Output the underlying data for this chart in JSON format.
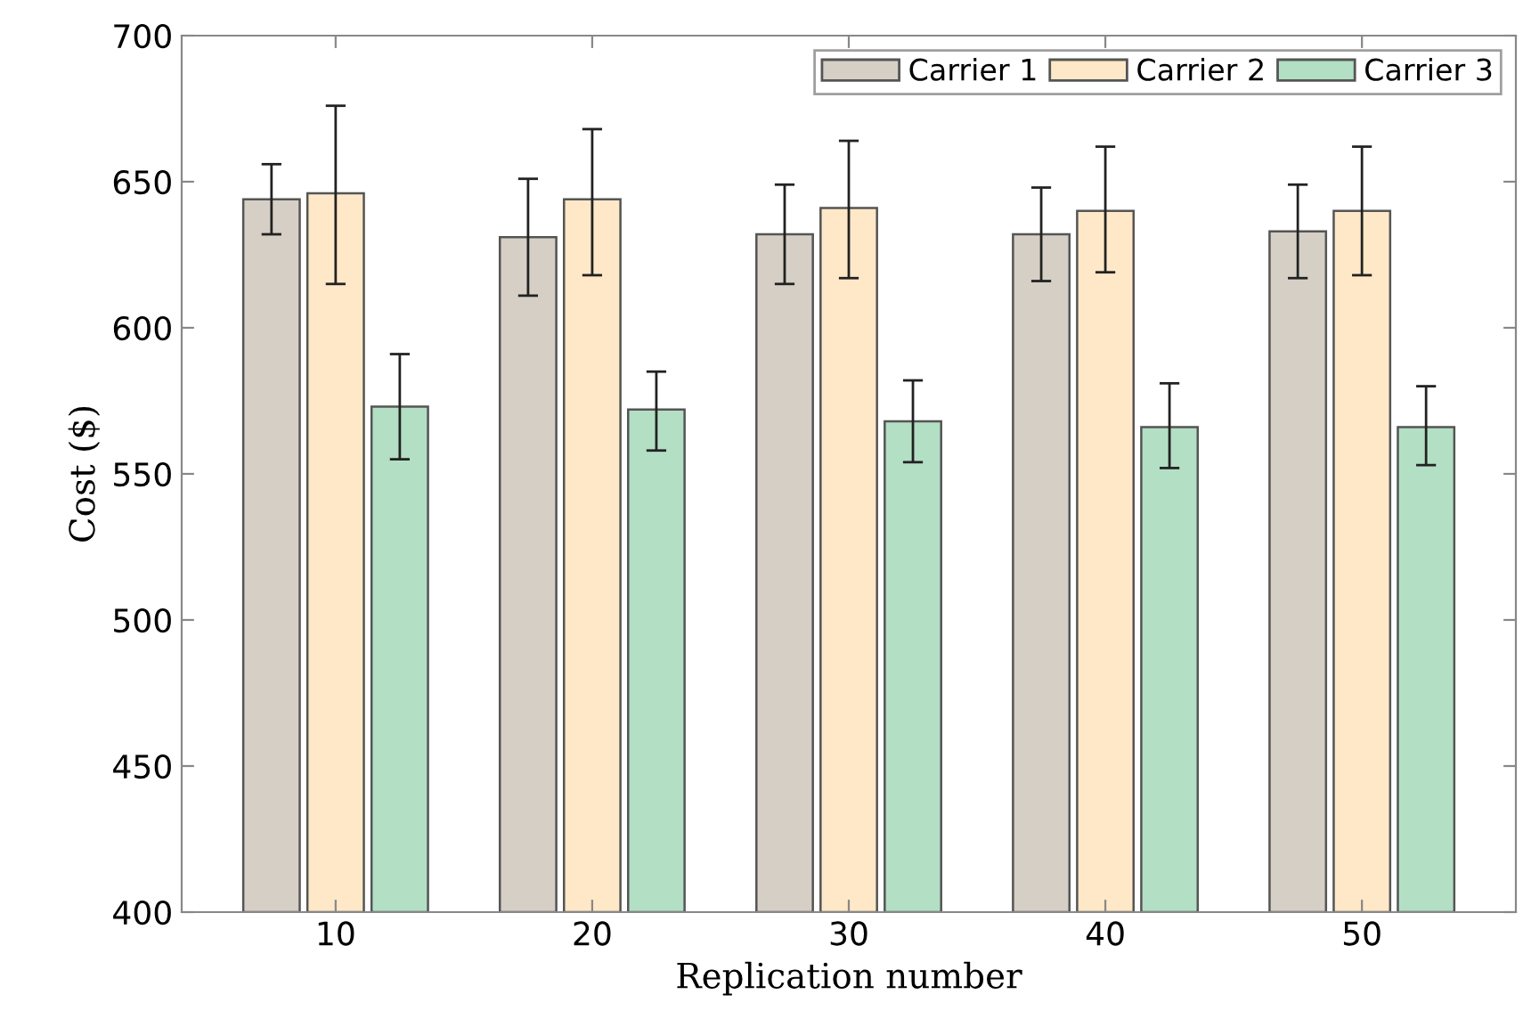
{
  "chart_data": {
    "type": "bar",
    "xlabel": "Replication number",
    "ylabel": "Cost ($)",
    "categories": [
      "10",
      "20",
      "30",
      "40",
      "50"
    ],
    "series": [
      {
        "name": "Carrier 1",
        "color": "#d5cfc6",
        "values": [
          644,
          631,
          632,
          632,
          633
        ],
        "errors": [
          [
            632,
            656
          ],
          [
            611,
            651
          ],
          [
            615,
            649
          ],
          [
            616,
            648
          ],
          [
            617,
            649
          ]
        ]
      },
      {
        "name": "Carrier 2",
        "color": "#fee8c8",
        "values": [
          646,
          644,
          641,
          640,
          640
        ],
        "errors": [
          [
            615,
            676
          ],
          [
            618,
            668
          ],
          [
            617,
            664
          ],
          [
            619,
            662
          ],
          [
            618,
            662
          ]
        ]
      },
      {
        "name": "Carrier 3",
        "color": "#b3dfc4",
        "values": [
          573,
          572,
          568,
          566,
          566
        ],
        "errors": [
          [
            555,
            591
          ],
          [
            558,
            585
          ],
          [
            554,
            582
          ],
          [
            552,
            581
          ],
          [
            553,
            580
          ]
        ]
      }
    ],
    "ylim": [
      400,
      700
    ],
    "yticks": [
      400,
      450,
      500,
      550,
      600,
      650,
      700
    ],
    "grid": false,
    "legend": "top right"
  }
}
